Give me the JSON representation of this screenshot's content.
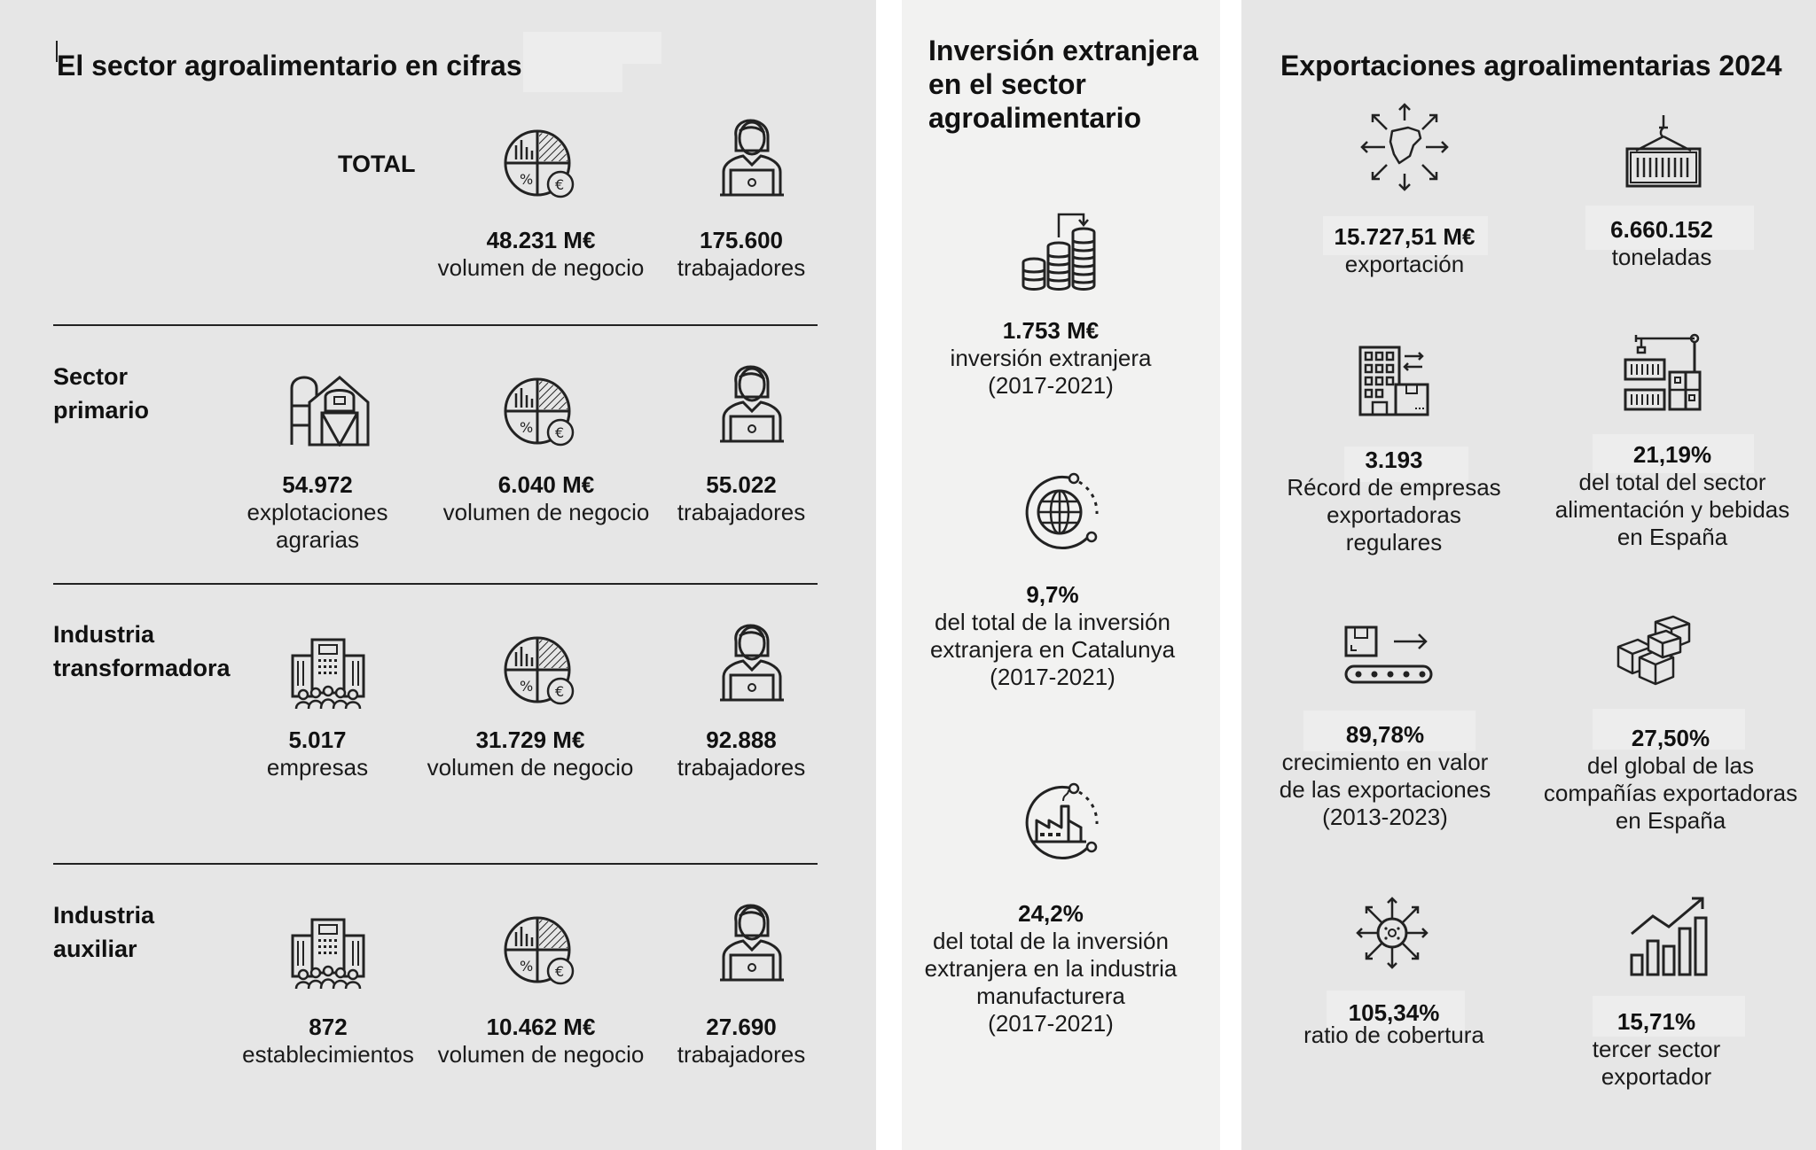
{
  "panel1": {
    "title": "El sector agroalimentario en cifras",
    "total": {
      "label": "TOTAL",
      "stats": [
        {
          "value": "48.231 M€",
          "desc": "volumen de negocio",
          "icon": "pie-chart-euro-icon"
        },
        {
          "value": "175.600",
          "desc": "trabajadores",
          "icon": "worker-laptop-icon"
        }
      ]
    },
    "primario": {
      "label": "Sector\nprimario",
      "stats": [
        {
          "value": "54.972",
          "desc": "explotaciones\nagrarias",
          "icon": "farm-barn-icon"
        },
        {
          "value": "6.040 M€",
          "desc": "volumen de negocio",
          "icon": "pie-chart-euro-icon"
        },
        {
          "value": "55.022",
          "desc": "trabajadores",
          "icon": "worker-laptop-icon"
        }
      ]
    },
    "transformadora": {
      "label": "Industria\ntransformadora",
      "stats": [
        {
          "value": "5.017",
          "desc": "empresas",
          "icon": "building-people-icon"
        },
        {
          "value": "31.729 M€",
          "desc": "volumen de negocio",
          "icon": "pie-chart-euro-icon"
        },
        {
          "value": "92.888",
          "desc": "trabajadores",
          "icon": "worker-laptop-icon"
        }
      ]
    },
    "auxiliar": {
      "label": "Industria\nauxiliar",
      "stats": [
        {
          "value": "872",
          "desc": "establecimientos",
          "icon": "building-people-icon"
        },
        {
          "value": "10.462 M€",
          "desc": "volumen de negocio",
          "icon": "pie-chart-euro-icon"
        },
        {
          "value": "27.690",
          "desc": "trabajadores",
          "icon": "worker-laptop-icon"
        }
      ]
    }
  },
  "panel2": {
    "title": "Inversión extranjera\nen el sector\nagroalimentario",
    "stats": [
      {
        "value": "1.753 M€",
        "desc": "inversión extranjera\n(2017-2021)",
        "icon": "coin-stacks-icon"
      },
      {
        "value": "9,7%",
        "desc": "del total de la inversión\nextranjera en Catalunya\n(2017-2021)",
        "icon": "globe-cycle-icon"
      },
      {
        "value": "24,2%",
        "desc": "del total de la inversión\nextranjera en la industria\nmanufacturera\n(2017-2021)",
        "icon": "factory-cycle-icon"
      }
    ]
  },
  "panel3": {
    "title": "Exportaciones agroalimentarias 2024",
    "stats": [
      {
        "value": "15.727,51 M€",
        "desc": "exportación",
        "icon": "map-arrows-icon"
      },
      {
        "value": "6.660.152",
        "desc": "toneladas",
        "icon": "container-icon"
      },
      {
        "value": "3.193",
        "desc": "Récord de empresas\nexportadoras\nregulares",
        "icon": "office-exchange-icon"
      },
      {
        "value": "21,19%",
        "desc": "del total del sector\nalimentación y bebidas\nen España",
        "icon": "crane-containers-icon"
      },
      {
        "value": "89,78%",
        "desc": "crecimiento en valor\nde las exportaciones\n(2013-2023)",
        "icon": "conveyor-icon"
      },
      {
        "value": "27,50%",
        "desc": "del global de las\ncompañías exportadoras\nen España",
        "icon": "boxes-icon"
      },
      {
        "value": "105,34%",
        "desc": "ratio de cobertura",
        "icon": "virus-arrows-icon"
      },
      {
        "value": "15,71%",
        "desc": "tercer sector\nexportador",
        "icon": "bar-growth-icon"
      }
    ]
  }
}
